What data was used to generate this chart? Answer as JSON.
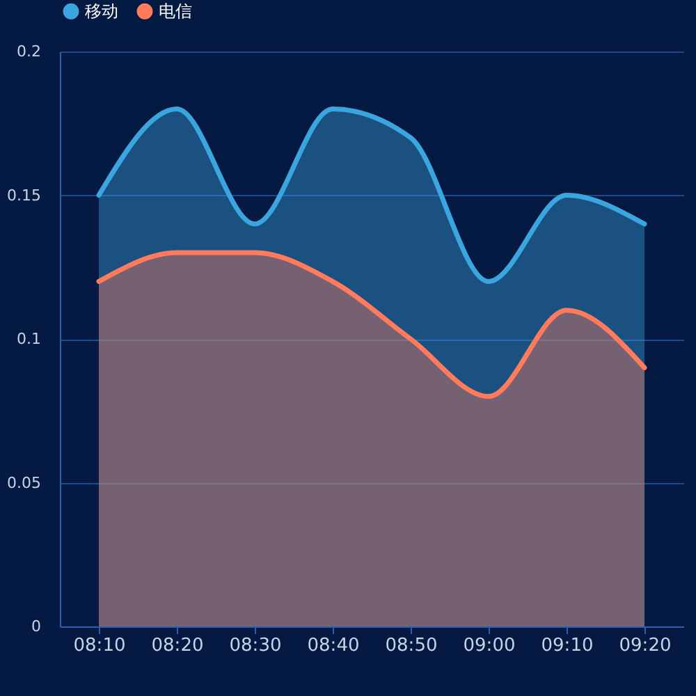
{
  "chart_data": {
    "type": "area",
    "categories": [
      "08:10",
      "08:20",
      "08:30",
      "08:40",
      "08:50",
      "09:00",
      "09:10",
      "09:20"
    ],
    "series": [
      {
        "name": "移动",
        "color": "#3ba5e0",
        "values": [
          0.15,
          0.18,
          0.14,
          0.18,
          0.17,
          0.12,
          0.15,
          0.14
        ]
      },
      {
        "name": "电信",
        "color": "#ff7b5c",
        "values": [
          0.12,
          0.13,
          0.13,
          0.12,
          0.1,
          0.08,
          0.11,
          0.09
        ]
      }
    ],
    "ylim": [
      0,
      0.2
    ],
    "yticks": [
      0,
      0.05,
      0.1,
      0.15,
      0.2
    ],
    "grid": "y",
    "legend": "top"
  }
}
